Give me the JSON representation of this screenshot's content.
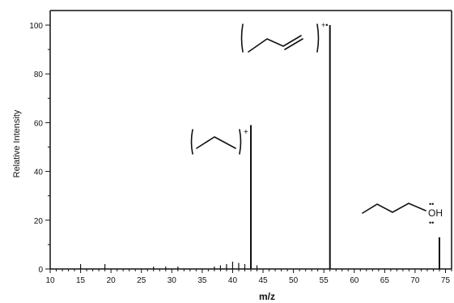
{
  "chart_data": {
    "type": "bar",
    "title": "",
    "xlabel": "m/z",
    "ylabel": "Relative Intensity",
    "xlim": [
      10,
      75
    ],
    "ylim": [
      0,
      100
    ],
    "grid": false,
    "xticks": [
      10,
      15,
      20,
      25,
      30,
      35,
      40,
      45,
      50,
      55,
      60,
      65,
      70,
      75
    ],
    "yticks": [
      0,
      20,
      40,
      60,
      80,
      100
    ],
    "peaks": [
      {
        "mz": 15,
        "intensity": 2
      },
      {
        "mz": 19,
        "intensity": 2
      },
      {
        "mz": 27,
        "intensity": 1
      },
      {
        "mz": 29,
        "intensity": 1
      },
      {
        "mz": 31,
        "intensity": 1
      },
      {
        "mz": 37,
        "intensity": 1
      },
      {
        "mz": 38,
        "intensity": 1.5
      },
      {
        "mz": 39,
        "intensity": 2
      },
      {
        "mz": 40,
        "intensity": 3
      },
      {
        "mz": 41,
        "intensity": 2.5
      },
      {
        "mz": 42,
        "intensity": 2
      },
      {
        "mz": 43,
        "intensity": 59
      },
      {
        "mz": 44,
        "intensity": 1.5
      },
      {
        "mz": 56,
        "intensity": 100
      },
      {
        "mz": 74,
        "intensity": 13
      }
    ],
    "annotations": [
      {
        "peak_mz": 56,
        "superscript": "+•"
      },
      {
        "peak_mz": 43,
        "superscript": "+"
      },
      {
        "peak_mz": 74,
        "label": "OH",
        "dots": "••"
      }
    ]
  }
}
